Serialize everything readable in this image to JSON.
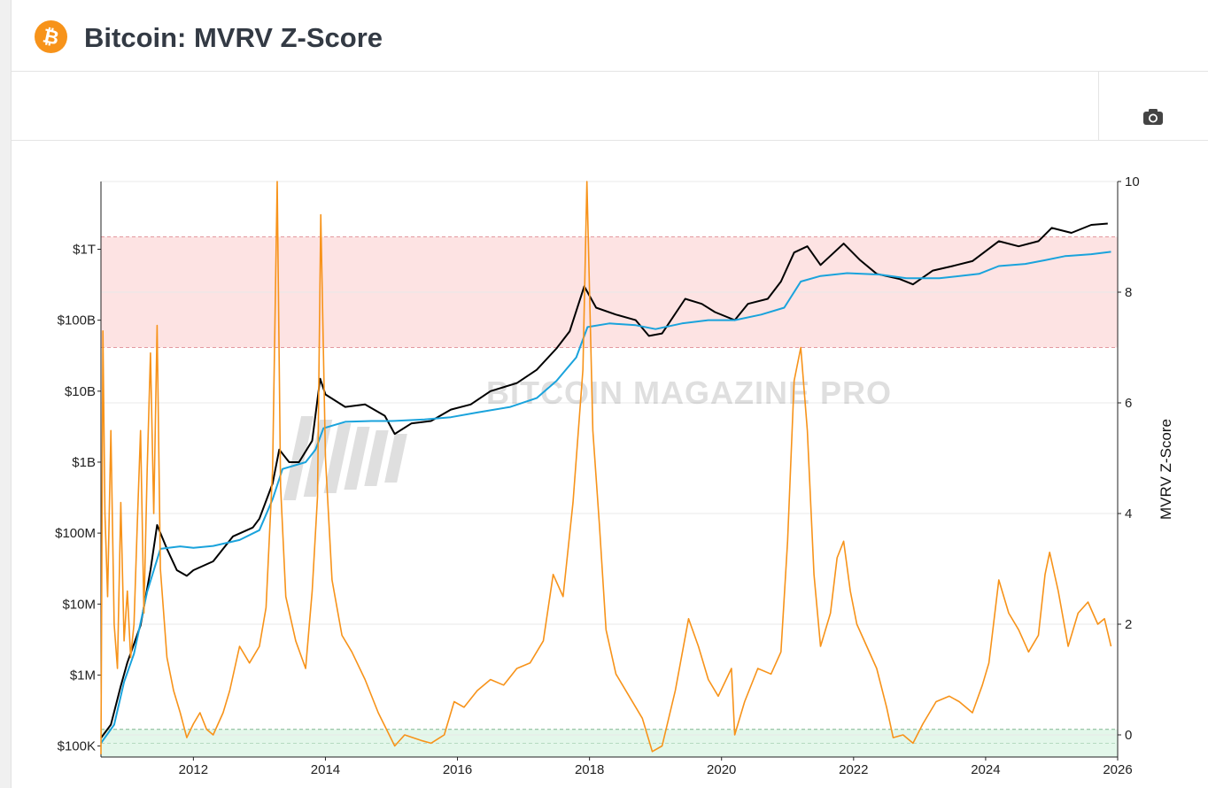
{
  "header": {
    "logo_glyph": "₿",
    "title": "Bitcoin: MVRV Z-Score",
    "brand_color": "#f7931a"
  },
  "toolbar": {
    "camera_icon": "camera-icon"
  },
  "chart_data": {
    "type": "line",
    "title": "Bitcoin: MVRV Z-Score",
    "watermark": "BITCOIN MAGAZINE PRO",
    "left_axis": {
      "scale": "log",
      "range": [
        70000,
        9000000000000
      ],
      "ticks": [
        {
          "value": 100000,
          "label": "$100K"
        },
        {
          "value": 1000000,
          "label": "$1M"
        },
        {
          "value": 10000000,
          "label": "$10M"
        },
        {
          "value": 100000000,
          "label": "$100M"
        },
        {
          "value": 1000000000,
          "label": "$1B"
        },
        {
          "value": 10000000000,
          "label": "$10B"
        },
        {
          "value": 100000000000,
          "label": "$100B"
        },
        {
          "value": 1000000000000,
          "label": "$1T"
        }
      ]
    },
    "right_axis": {
      "label": "MVRV Z-Score",
      "range": [
        -0.4,
        10
      ],
      "ticks": [
        0,
        2,
        4,
        6,
        8,
        10
      ]
    },
    "x_axis": {
      "range": [
        2010.6,
        2026.0
      ],
      "ticks": [
        "2012",
        "2014",
        "2016",
        "2018",
        "2020",
        "2022",
        "2024",
        "2026"
      ]
    },
    "bands": [
      {
        "name": "high zone",
        "axis": "right",
        "from": 7.0,
        "to": 9.0,
        "color": "#fde3e3",
        "line_color": "#e39aa0"
      },
      {
        "name": "low zone",
        "axis": "right",
        "from": -0.4,
        "to": 0.1,
        "color": "#e3f7ea",
        "line_color": "#7fb78f"
      }
    ],
    "series": [
      {
        "key": "market_cap",
        "axis": "left",
        "color": "#000000",
        "points": [
          [
            2010.6,
            130000
          ],
          [
            2010.75,
            200000
          ],
          [
            2010.9,
            700000
          ],
          [
            2011.0,
            1500000
          ],
          [
            2011.2,
            5000000
          ],
          [
            2011.35,
            30000000
          ],
          [
            2011.45,
            130000000
          ],
          [
            2011.6,
            60000000
          ],
          [
            2011.75,
            30000000
          ],
          [
            2011.9,
            25000000
          ],
          [
            2012.0,
            30000000
          ],
          [
            2012.3,
            40000000
          ],
          [
            2012.6,
            90000000
          ],
          [
            2012.9,
            120000000
          ],
          [
            2013.0,
            160000000
          ],
          [
            2013.2,
            500000000
          ],
          [
            2013.3,
            1500000000
          ],
          [
            2013.45,
            1000000000
          ],
          [
            2013.6,
            1000000000
          ],
          [
            2013.8,
            2000000000
          ],
          [
            2013.92,
            15000000000
          ],
          [
            2014.0,
            9000000000
          ],
          [
            2014.3,
            6000000000
          ],
          [
            2014.6,
            6500000000
          ],
          [
            2014.9,
            4500000000
          ],
          [
            2015.05,
            2500000000
          ],
          [
            2015.3,
            3500000000
          ],
          [
            2015.6,
            3800000000
          ],
          [
            2015.9,
            5500000000
          ],
          [
            2016.2,
            6500000000
          ],
          [
            2016.5,
            10000000000
          ],
          [
            2016.9,
            13000000000
          ],
          [
            2017.2,
            20000000000
          ],
          [
            2017.5,
            40000000000
          ],
          [
            2017.7,
            70000000000
          ],
          [
            2017.92,
            300000000000
          ],
          [
            2018.1,
            150000000000
          ],
          [
            2018.4,
            120000000000
          ],
          [
            2018.7,
            100000000000
          ],
          [
            2018.9,
            60000000000
          ],
          [
            2019.1,
            65000000000
          ],
          [
            2019.45,
            200000000000
          ],
          [
            2019.7,
            170000000000
          ],
          [
            2019.9,
            130000000000
          ],
          [
            2020.2,
            100000000000
          ],
          [
            2020.4,
            170000000000
          ],
          [
            2020.7,
            200000000000
          ],
          [
            2020.9,
            350000000000
          ],
          [
            2021.1,
            900000000000
          ],
          [
            2021.3,
            1100000000000
          ],
          [
            2021.5,
            600000000000
          ],
          [
            2021.85,
            1200000000000
          ],
          [
            2022.1,
            700000000000
          ],
          [
            2022.35,
            450000000000
          ],
          [
            2022.7,
            380000000000
          ],
          [
            2022.9,
            320000000000
          ],
          [
            2023.2,
            500000000000
          ],
          [
            2023.5,
            580000000000
          ],
          [
            2023.8,
            680000000000
          ],
          [
            2024.2,
            1300000000000
          ],
          [
            2024.5,
            1100000000000
          ],
          [
            2024.8,
            1300000000000
          ],
          [
            2025.0,
            2000000000000
          ],
          [
            2025.3,
            1700000000000
          ],
          [
            2025.6,
            2200000000000
          ],
          [
            2025.85,
            2300000000000
          ]
        ]
      },
      {
        "key": "realized_cap",
        "axis": "left",
        "color": "#1aa3dc",
        "points": [
          [
            2010.6,
            110000
          ],
          [
            2010.8,
            200000
          ],
          [
            2010.95,
            800000
          ],
          [
            2011.1,
            2000000
          ],
          [
            2011.3,
            15000000
          ],
          [
            2011.5,
            60000000
          ],
          [
            2011.8,
            65000000
          ],
          [
            2012.0,
            62000000
          ],
          [
            2012.3,
            66000000
          ],
          [
            2012.7,
            80000000
          ],
          [
            2013.0,
            110000000
          ],
          [
            2013.2,
            300000000
          ],
          [
            2013.35,
            800000000
          ],
          [
            2013.7,
            1000000000
          ],
          [
            2013.85,
            1500000000
          ],
          [
            2013.97,
            3000000000
          ],
          [
            2014.3,
            3700000000
          ],
          [
            2014.7,
            3800000000
          ],
          [
            2015.0,
            3800000000
          ],
          [
            2015.5,
            4000000000
          ],
          [
            2015.9,
            4300000000
          ],
          [
            2016.3,
            5000000000
          ],
          [
            2016.8,
            6000000000
          ],
          [
            2017.2,
            8000000000
          ],
          [
            2017.5,
            14000000000
          ],
          [
            2017.8,
            30000000000
          ],
          [
            2017.97,
            80000000000
          ],
          [
            2018.3,
            90000000000
          ],
          [
            2018.7,
            85000000000
          ],
          [
            2019.0,
            75000000000
          ],
          [
            2019.4,
            90000000000
          ],
          [
            2019.8,
            100000000000
          ],
          [
            2020.2,
            100000000000
          ],
          [
            2020.6,
            120000000000
          ],
          [
            2020.95,
            150000000000
          ],
          [
            2021.2,
            350000000000
          ],
          [
            2021.5,
            420000000000
          ],
          [
            2021.9,
            460000000000
          ],
          [
            2022.4,
            440000000000
          ],
          [
            2022.8,
            390000000000
          ],
          [
            2023.3,
            390000000000
          ],
          [
            2023.9,
            450000000000
          ],
          [
            2024.2,
            580000000000
          ],
          [
            2024.6,
            620000000000
          ],
          [
            2024.9,
            700000000000
          ],
          [
            2025.2,
            800000000000
          ],
          [
            2025.6,
            850000000000
          ],
          [
            2025.9,
            920000000000
          ]
        ]
      },
      {
        "key": "mvrv_z_score",
        "name": "MVRV Z-Score",
        "axis": "right",
        "color": "#f7931a",
        "points": [
          [
            2010.6,
            -0.35
          ],
          [
            2010.63,
            7.3
          ],
          [
            2010.66,
            4.0
          ],
          [
            2010.7,
            2.5
          ],
          [
            2010.75,
            5.5
          ],
          [
            2010.8,
            2.0
          ],
          [
            2010.85,
            1.2
          ],
          [
            2010.9,
            4.2
          ],
          [
            2010.95,
            1.7
          ],
          [
            2011.0,
            2.6
          ],
          [
            2011.05,
            1.4
          ],
          [
            2011.1,
            2.0
          ],
          [
            2011.15,
            3.8
          ],
          [
            2011.2,
            5.5
          ],
          [
            2011.25,
            2.2
          ],
          [
            2011.3,
            4.8
          ],
          [
            2011.35,
            6.9
          ],
          [
            2011.4,
            4.0
          ],
          [
            2011.45,
            7.4
          ],
          [
            2011.5,
            3.0
          ],
          [
            2011.6,
            1.4
          ],
          [
            2011.7,
            0.8
          ],
          [
            2011.8,
            0.4
          ],
          [
            2011.9,
            -0.05
          ],
          [
            2012.0,
            0.2
          ],
          [
            2012.1,
            0.4
          ],
          [
            2012.2,
            0.1
          ],
          [
            2012.3,
            0.0
          ],
          [
            2012.45,
            0.4
          ],
          [
            2012.55,
            0.8
          ],
          [
            2012.7,
            1.6
          ],
          [
            2012.85,
            1.3
          ],
          [
            2013.0,
            1.6
          ],
          [
            2013.1,
            2.3
          ],
          [
            2013.2,
            4.8
          ],
          [
            2013.27,
            10.0
          ],
          [
            2013.32,
            4.5
          ],
          [
            2013.4,
            2.5
          ],
          [
            2013.55,
            1.7
          ],
          [
            2013.7,
            1.2
          ],
          [
            2013.8,
            2.6
          ],
          [
            2013.88,
            4.3
          ],
          [
            2013.93,
            9.4
          ],
          [
            2014.0,
            5.0
          ],
          [
            2014.1,
            2.8
          ],
          [
            2014.25,
            1.8
          ],
          [
            2014.4,
            1.5
          ],
          [
            2014.6,
            1.0
          ],
          [
            2014.8,
            0.4
          ],
          [
            2015.05,
            -0.2
          ],
          [
            2015.2,
            0.0
          ],
          [
            2015.45,
            -0.1
          ],
          [
            2015.6,
            -0.15
          ],
          [
            2015.8,
            0.0
          ],
          [
            2015.95,
            0.6
          ],
          [
            2016.1,
            0.5
          ],
          [
            2016.3,
            0.8
          ],
          [
            2016.5,
            1.0
          ],
          [
            2016.7,
            0.9
          ],
          [
            2016.9,
            1.2
          ],
          [
            2017.1,
            1.3
          ],
          [
            2017.3,
            1.7
          ],
          [
            2017.45,
            2.9
          ],
          [
            2017.6,
            2.5
          ],
          [
            2017.75,
            4.2
          ],
          [
            2017.9,
            6.6
          ],
          [
            2017.96,
            10.0
          ],
          [
            2018.05,
            5.5
          ],
          [
            2018.15,
            3.8
          ],
          [
            2018.25,
            1.9
          ],
          [
            2018.4,
            1.1
          ],
          [
            2018.6,
            0.7
          ],
          [
            2018.8,
            0.3
          ],
          [
            2018.95,
            -0.3
          ],
          [
            2019.1,
            -0.2
          ],
          [
            2019.3,
            0.8
          ],
          [
            2019.5,
            2.1
          ],
          [
            2019.65,
            1.6
          ],
          [
            2019.8,
            1.0
          ],
          [
            2019.95,
            0.7
          ],
          [
            2020.15,
            1.2
          ],
          [
            2020.2,
            0.0
          ],
          [
            2020.35,
            0.6
          ],
          [
            2020.55,
            1.2
          ],
          [
            2020.75,
            1.1
          ],
          [
            2020.9,
            1.5
          ],
          [
            2021.0,
            3.5
          ],
          [
            2021.1,
            6.4
          ],
          [
            2021.2,
            7.0
          ],
          [
            2021.3,
            5.5
          ],
          [
            2021.4,
            2.9
          ],
          [
            2021.5,
            1.6
          ],
          [
            2021.65,
            2.2
          ],
          [
            2021.75,
            3.2
          ],
          [
            2021.85,
            3.5
          ],
          [
            2021.95,
            2.6
          ],
          [
            2022.05,
            2.0
          ],
          [
            2022.2,
            1.6
          ],
          [
            2022.35,
            1.2
          ],
          [
            2022.5,
            0.5
          ],
          [
            2022.6,
            -0.05
          ],
          [
            2022.75,
            0.0
          ],
          [
            2022.9,
            -0.15
          ],
          [
            2023.05,
            0.2
          ],
          [
            2023.25,
            0.6
          ],
          [
            2023.45,
            0.7
          ],
          [
            2023.6,
            0.6
          ],
          [
            2023.8,
            0.4
          ],
          [
            2023.95,
            0.9
          ],
          [
            2024.05,
            1.3
          ],
          [
            2024.2,
            2.8
          ],
          [
            2024.35,
            2.2
          ],
          [
            2024.5,
            1.9
          ],
          [
            2024.65,
            1.5
          ],
          [
            2024.8,
            1.8
          ],
          [
            2024.9,
            2.9
          ],
          [
            2024.97,
            3.3
          ],
          [
            2025.1,
            2.6
          ],
          [
            2025.25,
            1.6
          ],
          [
            2025.4,
            2.2
          ],
          [
            2025.55,
            2.4
          ],
          [
            2025.7,
            2.0
          ],
          [
            2025.8,
            2.1
          ],
          [
            2025.9,
            1.6
          ]
        ]
      }
    ]
  }
}
